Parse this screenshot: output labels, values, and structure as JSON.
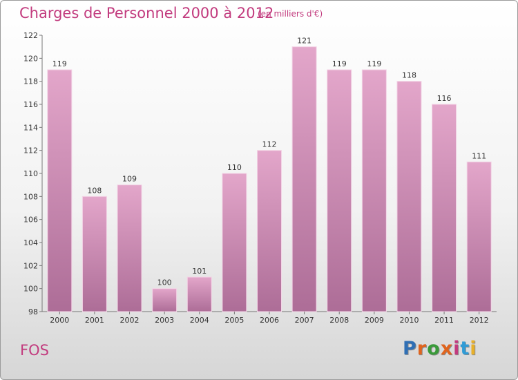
{
  "title": "Charges de Personnel 2000 à 2012",
  "subtitle": "(en milliers d'€)",
  "location": "FOS",
  "logo": {
    "text": "Proxiti",
    "colors": [
      "#2f6fb5",
      "#e0641e",
      "#3a9a3a",
      "#e0641e",
      "#c23b7e",
      "#2f9bd6",
      "#e8b02a"
    ]
  },
  "colors": {
    "bar_top": "#e3a6ca",
    "bar_bottom": "#ad6d97",
    "accent": "#c23b7e"
  },
  "chart_data": {
    "type": "bar",
    "categories": [
      "2000",
      "2001",
      "2002",
      "2003",
      "2004",
      "2005",
      "2006",
      "2007",
      "2008",
      "2009",
      "2010",
      "2011",
      "2012"
    ],
    "values": [
      119,
      108,
      109,
      100,
      101,
      110,
      112,
      121,
      119,
      119,
      118,
      116,
      111
    ],
    "ylim": [
      98,
      122
    ],
    "yticks": [
      98,
      100,
      102,
      104,
      106,
      108,
      110,
      112,
      114,
      116,
      118,
      120,
      122
    ],
    "grid": false,
    "xlabel": "",
    "ylabel": ""
  }
}
